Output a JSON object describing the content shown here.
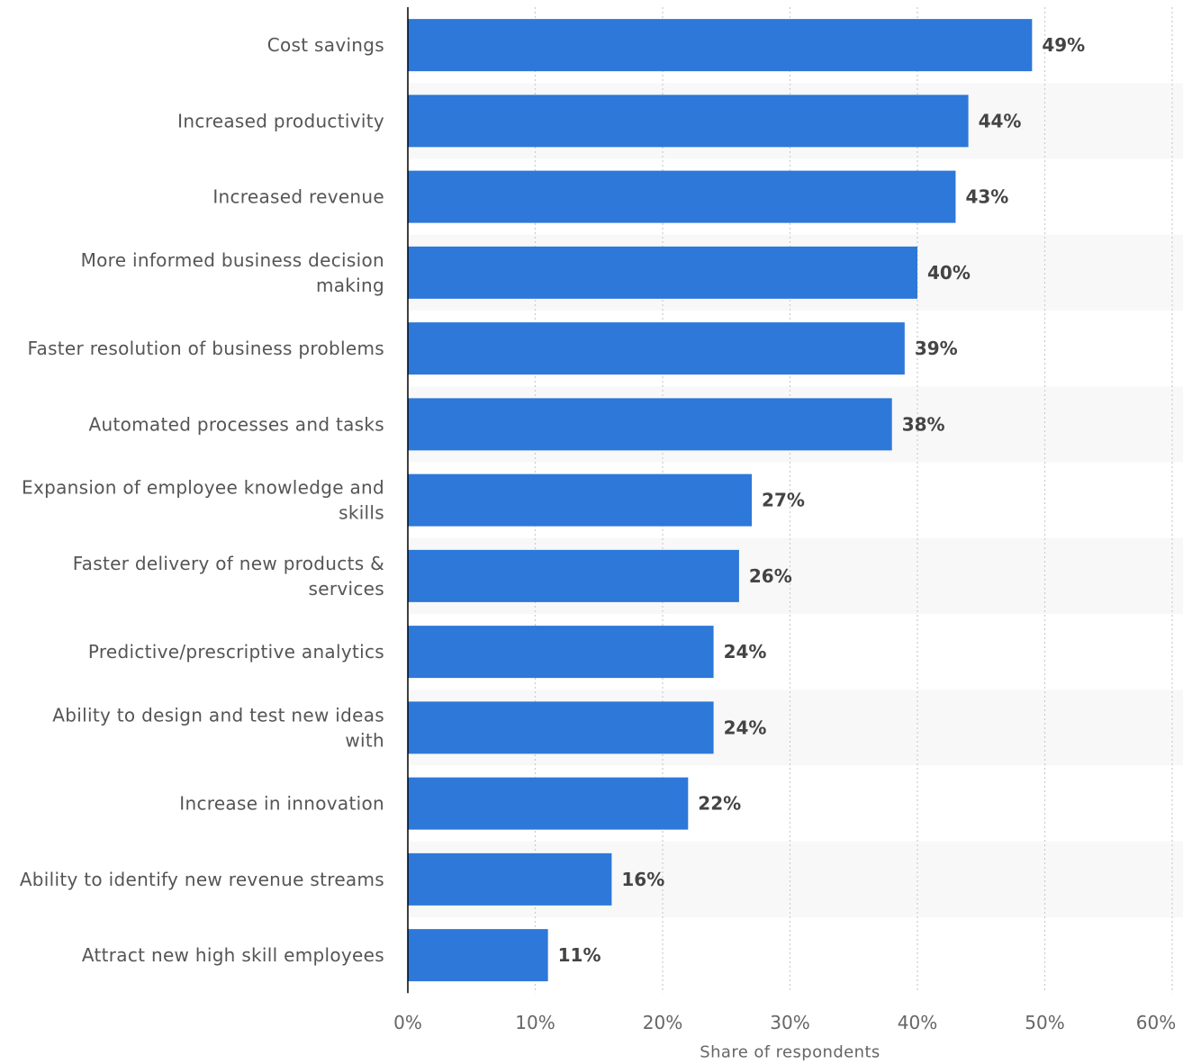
{
  "chart_data": {
    "type": "bar",
    "orientation": "horizontal",
    "categories": [
      "Cost savings",
      "Increased productivity",
      "Increased revenue",
      "More informed business decision making",
      "Faster resolution of business problems",
      "Automated processes and tasks",
      "Expansion of employee knowledge and skills",
      "Faster delivery of new products & services",
      "Predictive/prescriptive analytics",
      "Ability to design and test new ideas with",
      "Increase in innovation",
      "Ability to identify new revenue streams",
      "Attract new high skill employees"
    ],
    "category_lines": [
      [
        "Cost savings"
      ],
      [
        "Increased productivity"
      ],
      [
        "Increased revenue"
      ],
      [
        "More informed business decision",
        "making"
      ],
      [
        "Faster resolution of business problems"
      ],
      [
        "Automated processes and tasks"
      ],
      [
        "Expansion of employee knowledge and",
        "skills"
      ],
      [
        "Faster delivery of new products &",
        "services"
      ],
      [
        "Predictive/prescriptive analytics"
      ],
      [
        "Ability to design and test new ideas",
        "with"
      ],
      [
        "Increase in innovation"
      ],
      [
        "Ability to identify new revenue streams"
      ],
      [
        "Attract new high skill employees"
      ]
    ],
    "values": [
      49,
      44,
      43,
      40,
      39,
      38,
      27,
      26,
      24,
      24,
      22,
      16,
      11
    ],
    "value_labels": [
      "49%",
      "44%",
      "43%",
      "40%",
      "39%",
      "38%",
      "27%",
      "26%",
      "24%",
      "24%",
      "22%",
      "16%",
      "11%"
    ],
    "title": "",
    "xlabel": "Share of respondents",
    "ylabel": "",
    "xlim": [
      0,
      60
    ],
    "x_ticks": [
      0,
      10,
      20,
      30,
      40,
      50,
      60
    ],
    "x_tick_labels": [
      "0%",
      "10%",
      "20%",
      "30%",
      "40%",
      "50%",
      "60%"
    ],
    "grid": true,
    "grid_style": "dotted-vertical",
    "legend": "none",
    "colors": {
      "bar": "#2d78d8",
      "band": "#f8f8f8",
      "grid": "#cccccc",
      "axis": "#000000"
    }
  }
}
